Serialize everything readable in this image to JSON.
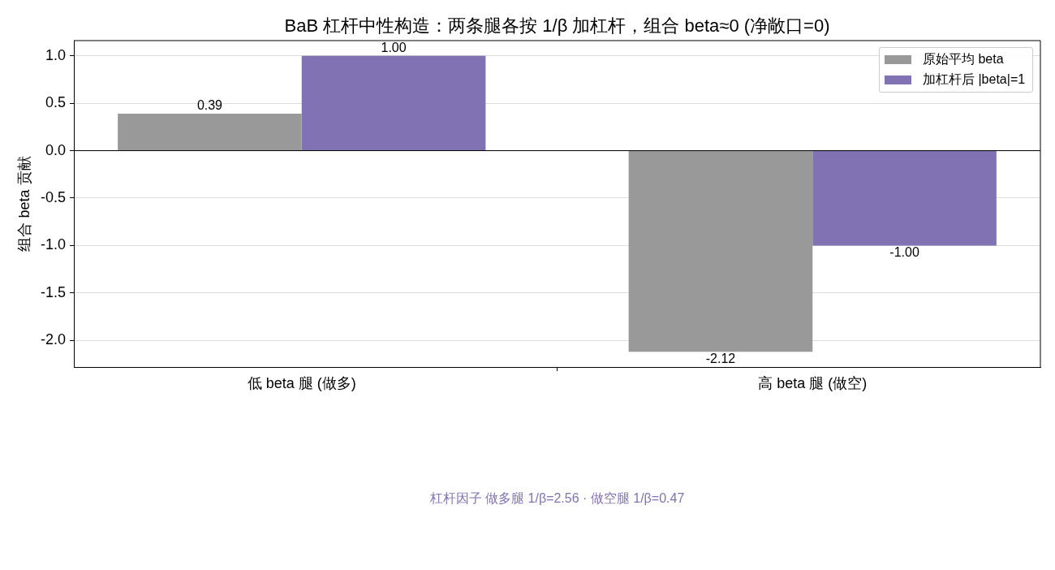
{
  "chart_data": {
    "type": "bar",
    "title": "BaB 杠杆中性构造：两条腿各按 1/β 加杠杆，组合 beta≈0 (净敞口=0)",
    "ylabel": "组合 beta 贡献",
    "categories": [
      "低 beta 腿 (做多)",
      "高 beta 腿 (做空)"
    ],
    "series": [
      {
        "name": "原始平均 beta",
        "color": "#999999",
        "values": [
          0.39,
          -2.12
        ],
        "value_labels": [
          "0.39",
          "-2.12"
        ]
      },
      {
        "name": "加杠杆后 |beta|=1",
        "color": "#8172b3",
        "values": [
          1.0,
          -1.0
        ],
        "value_labels": [
          "1.00",
          "-1.00"
        ]
      }
    ],
    "ylim": [
      -2.28,
      1.16
    ],
    "yticks": [
      {
        "value": -2,
        "label": "-2.0"
      },
      -1.5,
      {
        "value": -1,
        "label": "-1.0"
      },
      -0.5,
      {
        "value": 0,
        "label": "0.0"
      },
      0.5,
      {
        "value": 1,
        "label": "1.0"
      }
    ],
    "grid": "y",
    "legend": "top right",
    "ref_lines": [
      {
        "axis": "y",
        "value": 0,
        "color": "#000000"
      }
    ],
    "annotations": [
      "杠杆因子 做多腿 1/β=2.56 · 做空腿 1/β=0.47"
    ]
  }
}
